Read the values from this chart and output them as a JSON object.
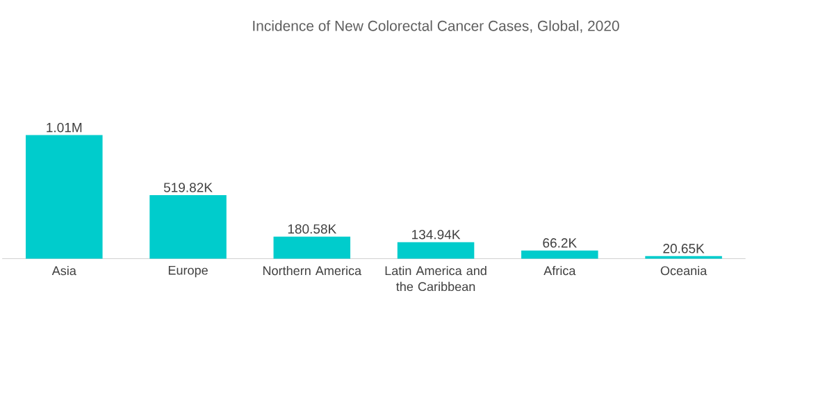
{
  "chart_data": {
    "type": "bar",
    "title": "Incidence of New Colorectal Cancer Cases, Global, 2020",
    "categories": [
      "Asia",
      "Europe",
      "Northern America",
      "Latin America and the Caribbean",
      "Africa",
      "Oceania"
    ],
    "values": [
      1010000,
      519820,
      180580,
      134940,
      66200,
      20650
    ],
    "value_labels": [
      "1.01M",
      "519.82K",
      "180.58K",
      "134.94K",
      "66.2K",
      "20.65K"
    ],
    "color": "#00cccc"
  }
}
